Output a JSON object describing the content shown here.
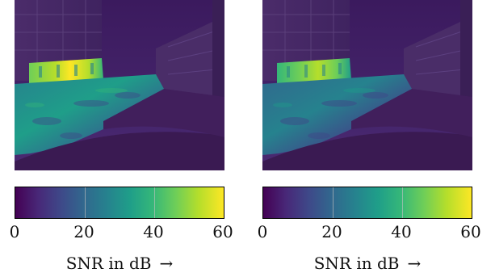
{
  "colormap": {
    "name": "viridis",
    "stops": [
      "#440154",
      "#482878",
      "#3e4989",
      "#31688e",
      "#26828e",
      "#1f9e89",
      "#35b779",
      "#6ece58",
      "#b5de2b",
      "#fde725"
    ]
  },
  "panels": [
    {
      "image": "street scene with buildings, overlaid SNR heatmap",
      "colorbar": {
        "ticks": [
          "0",
          "20",
          "40",
          "60"
        ],
        "label": "SNR in dB",
        "arrow": "→"
      }
    },
    {
      "image": "street scene with buildings, overlaid SNR heatmap",
      "colorbar": {
        "ticks": [
          "0",
          "20",
          "40",
          "60"
        ],
        "label": "SNR in dB",
        "arrow": "→"
      }
    }
  ]
}
